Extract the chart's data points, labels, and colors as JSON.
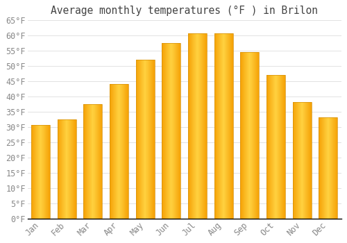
{
  "title": "Average monthly temperatures (°F ) in Brilon",
  "months": [
    "Jan",
    "Feb",
    "Mar",
    "Apr",
    "May",
    "Jun",
    "Jul",
    "Aug",
    "Sep",
    "Oct",
    "Nov",
    "Dec"
  ],
  "values": [
    30.5,
    32.5,
    37.5,
    44,
    52,
    57.5,
    60.5,
    60.5,
    54.5,
    47,
    38,
    33
  ],
  "bar_color_left": "#F5A800",
  "bar_color_center": "#FFD040",
  "bar_color_right": "#F5A800",
  "background_color": "#FFFFFF",
  "grid_color": "#DDDDDD",
  "text_color": "#888888",
  "title_color": "#444444",
  "axis_color": "#000000",
  "ylim": [
    0,
    65
  ],
  "yticks": [
    0,
    5,
    10,
    15,
    20,
    25,
    30,
    35,
    40,
    45,
    50,
    55,
    60,
    65
  ],
  "title_fontsize": 10.5,
  "tick_fontsize": 8.5,
  "font_family": "monospace",
  "bar_width": 0.72
}
